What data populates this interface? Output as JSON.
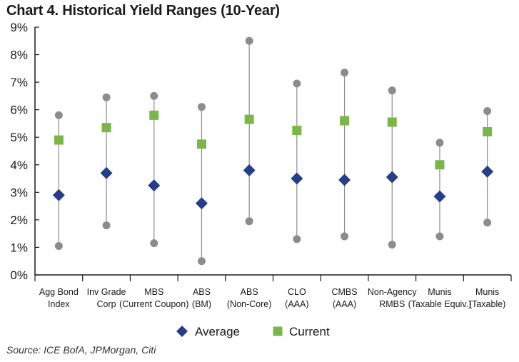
{
  "chart_data": {
    "type": "scatter",
    "title": "Chart 4. Historical Yield Ranges (10-Year)",
    "source": "Source: ICE BofA, JPMorgan, Citi",
    "xlabel": "",
    "ylabel": "",
    "ylim": [
      0,
      9
    ],
    "yticks": [
      "0%",
      "1%",
      "2%",
      "3%",
      "4%",
      "5%",
      "6%",
      "7%",
      "8%",
      "9%"
    ],
    "categories": [
      [
        "Agg Bond",
        "Index"
      ],
      [
        "Inv Grade",
        "Corp"
      ],
      [
        "MBS",
        "(Current Coupon)"
      ],
      [
        "ABS",
        "(BM)"
      ],
      [
        "ABS",
        "(Non-Core)"
      ],
      [
        "CLO",
        "(AAA)"
      ],
      [
        "CMBS",
        "(AAA)"
      ],
      [
        "Non-Agency",
        "RMBS"
      ],
      [
        "Munis",
        "(Taxable Equiv.)"
      ],
      [
        "Munis",
        "(Taxable)"
      ]
    ],
    "ranges": {
      "low": [
        1.05,
        1.8,
        1.15,
        0.5,
        1.95,
        1.3,
        1.4,
        1.1,
        1.4,
        1.9
      ],
      "high": [
        5.8,
        6.45,
        6.5,
        6.1,
        8.5,
        6.95,
        7.35,
        6.7,
        4.8,
        5.95
      ]
    },
    "series": [
      {
        "name": "Average",
        "marker": "diamond",
        "color": "#263e8a",
        "values": [
          2.9,
          3.7,
          3.25,
          2.6,
          3.8,
          3.5,
          3.45,
          3.55,
          2.85,
          3.75
        ]
      },
      {
        "name": "Current",
        "marker": "square",
        "color": "#7ab648",
        "values": [
          4.9,
          5.35,
          5.8,
          4.75,
          5.65,
          5.25,
          5.6,
          5.55,
          4.0,
          5.2
        ]
      }
    ],
    "range_color": "#8c8c8c",
    "legend": [
      "Average",
      "Current"
    ],
    "legend_position": "bottom-center"
  }
}
